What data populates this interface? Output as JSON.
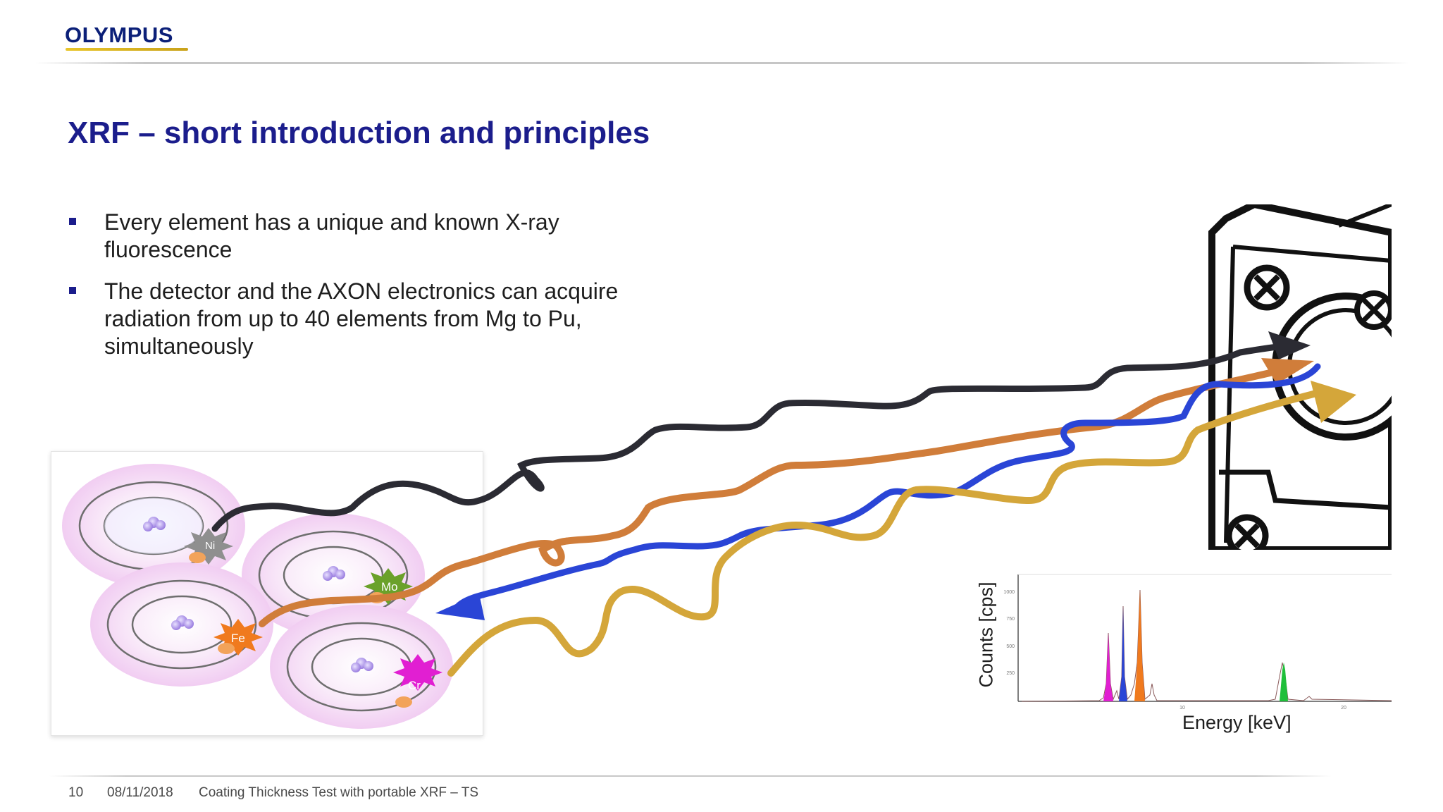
{
  "brand": {
    "logo_text": "OLYMPUS"
  },
  "slide": {
    "title": "XRF – short introduction and principles",
    "bullets": [
      "Every element has a unique and known X-ray fluorescence",
      "The detector and the AXON electronics can acquire radiation from up to 40 elements from Mg to Pu, simultaneously"
    ]
  },
  "atoms": {
    "labels": [
      "Ni",
      "Mo",
      "Fe",
      "Cr"
    ],
    "colors": {
      "Ni": "#8f8f8f",
      "Mo": "#6aa12a",
      "Fe": "#f07a1e",
      "Cr": "#e11fd2"
    }
  },
  "waves": {
    "colors": [
      "#2b2b33",
      "#d07d3a",
      "#2a45d6",
      "#d4a63a"
    ]
  },
  "spectrum": {
    "xlabel": "Energy [keV]",
    "ylabel": "Counts [cps]",
    "yticks": [
      "1000",
      "750",
      "500",
      "250"
    ],
    "xticks": [
      "10",
      "20"
    ]
  },
  "footer": {
    "page": "10",
    "date": "08/11/2018",
    "text": "Coating Thickness Test with portable XRF – TS"
  }
}
